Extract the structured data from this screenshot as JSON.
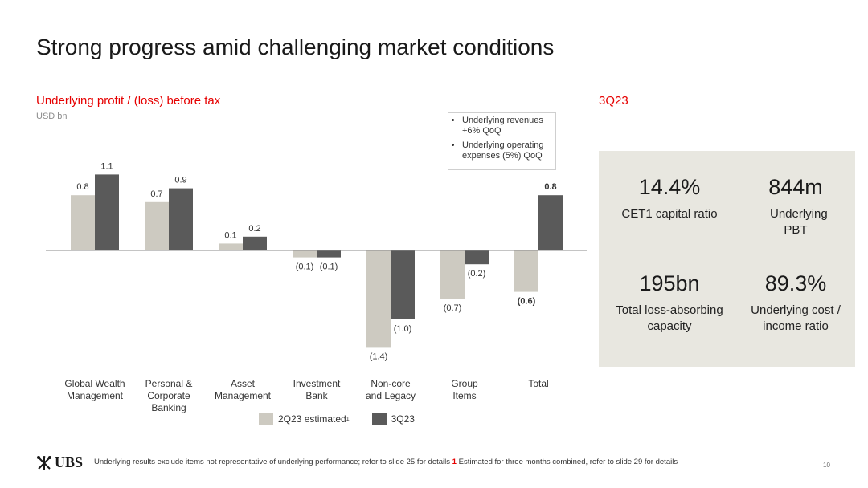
{
  "slide": {
    "title": "Strong progress amid challenging market conditions",
    "page_number": "10"
  },
  "chart_data": {
    "type": "bar",
    "title": "Underlying profit / (loss) before tax",
    "unit": "USD bn",
    "categories": [
      "Global Wealth Management",
      "Personal & Corporate Banking",
      "Asset Management",
      "Investment Bank",
      "Non-core and Legacy",
      "Group Items",
      "Total"
    ],
    "category_labels": [
      [
        "Global Wealth",
        "Management"
      ],
      [
        "Personal &",
        "Corporate",
        "Banking"
      ],
      [
        "Asset",
        "Management"
      ],
      [
        "Investment",
        "Bank"
      ],
      [
        "Non-core",
        "and Legacy"
      ],
      [
        "Group",
        "Items"
      ],
      [
        "Total"
      ]
    ],
    "series": [
      {
        "name": "2Q23 estimated",
        "values": [
          0.8,
          0.7,
          0.1,
          -0.1,
          -1.4,
          -0.7,
          -0.6
        ],
        "labels": [
          "0.8",
          "0.7",
          "0.1",
          "(0.1)",
          "(1.4)",
          "(0.7)",
          "(0.6)"
        ],
        "color": "#cdcac1"
      },
      {
        "name": "3Q23",
        "values": [
          1.1,
          0.9,
          0.2,
          -0.1,
          -1.0,
          -0.2,
          0.8
        ],
        "labels": [
          "1.1",
          "0.9",
          "0.2",
          "(0.1)",
          "(1.0)",
          "(0.2)",
          "0.8"
        ],
        "color": "#5a5a5a"
      }
    ],
    "bold_category": "Total",
    "ylim": [
      -1.5,
      1.2
    ],
    "legend": {
      "position": "bottom",
      "items": [
        {
          "label": "2Q23 estimated",
          "superscript": "1"
        },
        {
          "label": "3Q23"
        }
      ]
    },
    "annotation": {
      "bullets": [
        "Underlying revenues +6% QoQ",
        "Underlying operating expenses (5%) QoQ"
      ]
    }
  },
  "panel": {
    "title": "3Q23",
    "kpis": [
      {
        "value": "14.4%",
        "label": "CET1 capital ratio"
      },
      {
        "value": "844m",
        "label": "Underlying PBT"
      },
      {
        "value": "195bn",
        "label": "Total loss-absorbing capacity"
      },
      {
        "value": "89.3%",
        "label": "Underlying cost / income ratio"
      }
    ]
  },
  "footer": {
    "logo_text": "UBS",
    "note_part1": "Underlying results exclude items not representative of underlying performance; refer to slide 25 for details",
    "note_marker": "1",
    "note_part2": "Estimated for three months combined, refer to slide 29 for details"
  },
  "colors": {
    "accent": "#e60000",
    "series_2q23": "#cdcac1",
    "series_3q23": "#5a5a5a",
    "panel_bg": "#e8e7e0"
  }
}
